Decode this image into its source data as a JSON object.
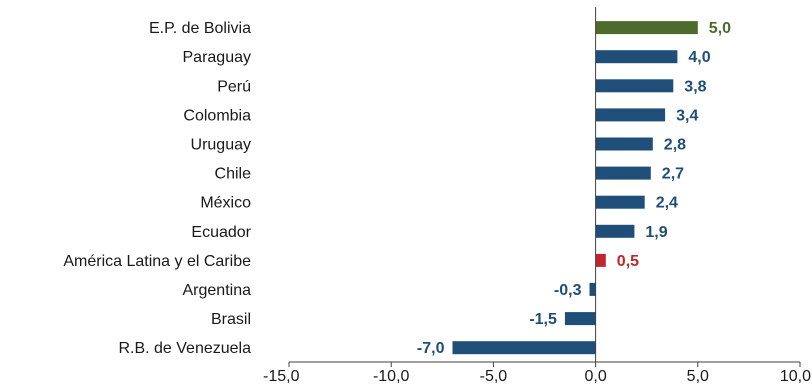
{
  "chart_data": {
    "type": "bar",
    "orientation": "horizontal",
    "title": "",
    "xlabel": "",
    "ylabel": "",
    "xlim": [
      -15,
      10
    ],
    "xticks": [
      -15,
      -10,
      -5,
      0,
      5,
      10
    ],
    "xtick_labels": [
      "-15,0",
      "-10,0",
      "-5,0",
      "0,0",
      "5,0",
      "10,0"
    ],
    "grid": false,
    "legend": "none",
    "categories": [
      "E.P. de Bolivia",
      "Paraguay",
      "Perú",
      "Colombia",
      "Uruguay",
      "Chile",
      "México",
      "Ecuador",
      "América Latina y el Caribe",
      "Argentina",
      "Brasil",
      "R.B. de Venezuela"
    ],
    "values": [
      5.0,
      4.0,
      3.8,
      3.4,
      2.8,
      2.7,
      2.4,
      1.9,
      0.5,
      -0.3,
      -1.5,
      -7.0
    ],
    "value_labels": [
      "5,0",
      "4,0",
      "3,8",
      "3,4",
      "2,8",
      "2,7",
      "2,4",
      "1,9",
      "0,5",
      "-0,3",
      "-1,5",
      "-7,0"
    ],
    "bar_colors": [
      "#4e6b2e",
      "#1f4e79",
      "#1f4e79",
      "#1f4e79",
      "#1f4e79",
      "#1f4e79",
      "#1f4e79",
      "#1f4e79",
      "#c0272d",
      "#1f4e79",
      "#1f4e79",
      "#1f4e79"
    ],
    "axis_color": "#404040"
  }
}
